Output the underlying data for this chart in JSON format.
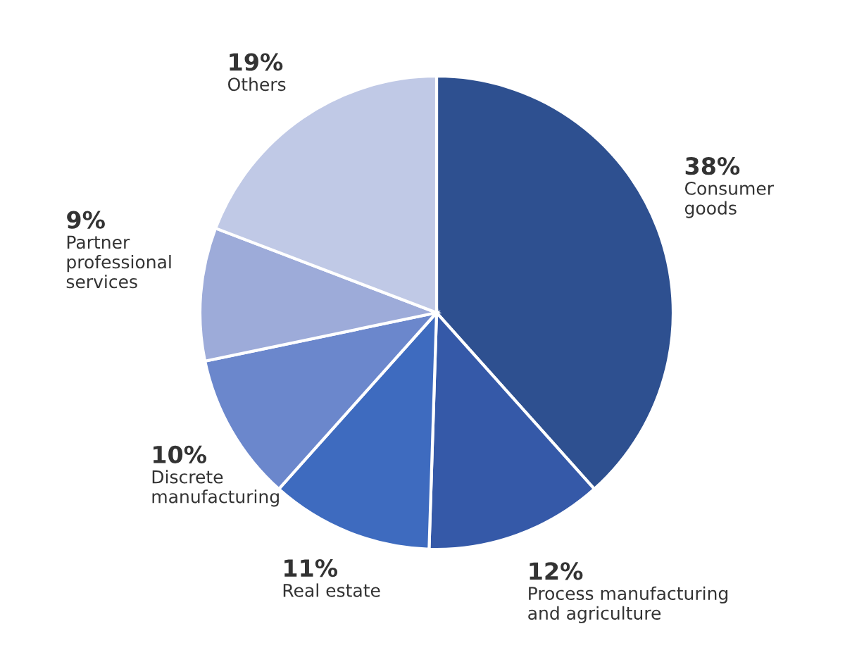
{
  "chart_data": {
    "type": "pie",
    "categories": [
      "Consumer\ngoods",
      "Process manufacturing\nand agriculture",
      "Real estate",
      "Discrete\nmanufacturing",
      "Partner\nprofessional\nservices",
      "Others"
    ],
    "values": [
      38,
      12,
      11,
      10,
      9,
      19
    ],
    "value_labels": [
      "38%",
      "12%",
      "11%",
      "10%",
      "9%",
      "19%"
    ],
    "colors": [
      "#2e5090",
      "#3559a8",
      "#3e6bbf",
      "#6b87cc",
      "#9dabd9",
      "#c0c9e6"
    ],
    "legend": false
  }
}
